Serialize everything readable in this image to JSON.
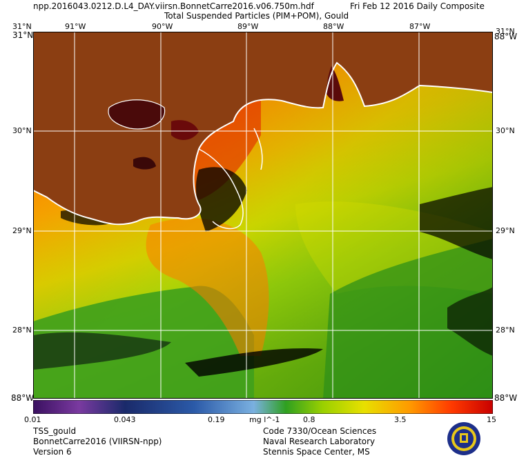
{
  "header": {
    "filename": "npp.2016043.0212.D.L4_DAY.viirsn.BonnetCarre2016.v06.750m.hdf",
    "date": "Fri Feb 12 2016 Daily Composite",
    "product": "Total Suspended Particles (PIM+POM), Gould"
  },
  "map": {
    "lon_top": [
      "91°W",
      "90°W",
      "89°W",
      "88°W",
      "87°W"
    ],
    "lat_left": [
      "31°N",
      "30°N",
      "29°N",
      "28°N"
    ],
    "corner_tl": "31°N",
    "corner_bl": "88°W",
    "lat_right": [
      "31°N",
      "30°N",
      "29°N",
      "28°N"
    ],
    "corner_tr": "88°W",
    "corner_br": "88°W",
    "bottom_left_overlap": "88°W",
    "colors": {
      "land": "#8b3e12",
      "coast": "#ffffff",
      "nodata": "#000000",
      "high": "#d90000",
      "mid": "#ff9900",
      "low": "#3fa01c",
      "yellow": "#dde000"
    }
  },
  "colorbar": {
    "ticks": [
      "0.01",
      "0.043",
      "0.19",
      "mg l^-1",
      "0.8",
      "3.5",
      "15"
    ],
    "stops": [
      "#3a1060",
      "#7a3aa0",
      "#1a2a6a",
      "#2b5aa8",
      "#7ab0e0",
      "#2fa020",
      "#9ad000",
      "#e8e000",
      "#ff9900",
      "#ff3a00",
      "#c80000"
    ]
  },
  "footer": {
    "left": [
      "TSS_gould",
      "BonnetCarre2016 (VIIRSN-npp)",
      "Version 6"
    ],
    "right": [
      "Code 7330/Ocean Sciences",
      "Naval Research Laboratory",
      "Stennis Space Center, MS"
    ]
  }
}
